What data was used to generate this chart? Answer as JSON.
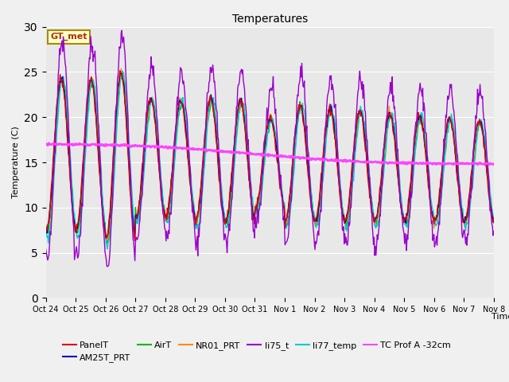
{
  "title": "Temperatures",
  "xlabel": "Time",
  "ylabel": "Temperature (C)",
  "ylim": [
    0,
    30
  ],
  "yticks": [
    0,
    5,
    10,
    15,
    20,
    25,
    30
  ],
  "x_tick_labels": [
    "Oct 24",
    "Oct 25",
    "Oct 26",
    "Oct 27",
    "Oct 28",
    "Oct 29",
    "Oct 30",
    "Oct 31",
    "Nov 1",
    "Nov 2",
    "Nov 3",
    "Nov 4",
    "Nov 5",
    "Nov 6",
    "Nov 7",
    "Nov 8"
  ],
  "series_colors": {
    "PanelT": "#dd0000",
    "AM25T_PRT": "#0000bb",
    "AirT": "#00bb00",
    "NR01_PRT": "#ff8800",
    "li75_t": "#9900cc",
    "li77_temp": "#00cccc",
    "TC_Prof_A": "#ff44ff"
  },
  "annotation_text": "GT_met",
  "annotation_fg": "#aa3300",
  "annotation_bg": "#ffffcc",
  "annotation_border": "#aa8800",
  "background_color": "#e8e8e8",
  "fig_background": "#f0f0f0",
  "grid_color": "#ffffff"
}
